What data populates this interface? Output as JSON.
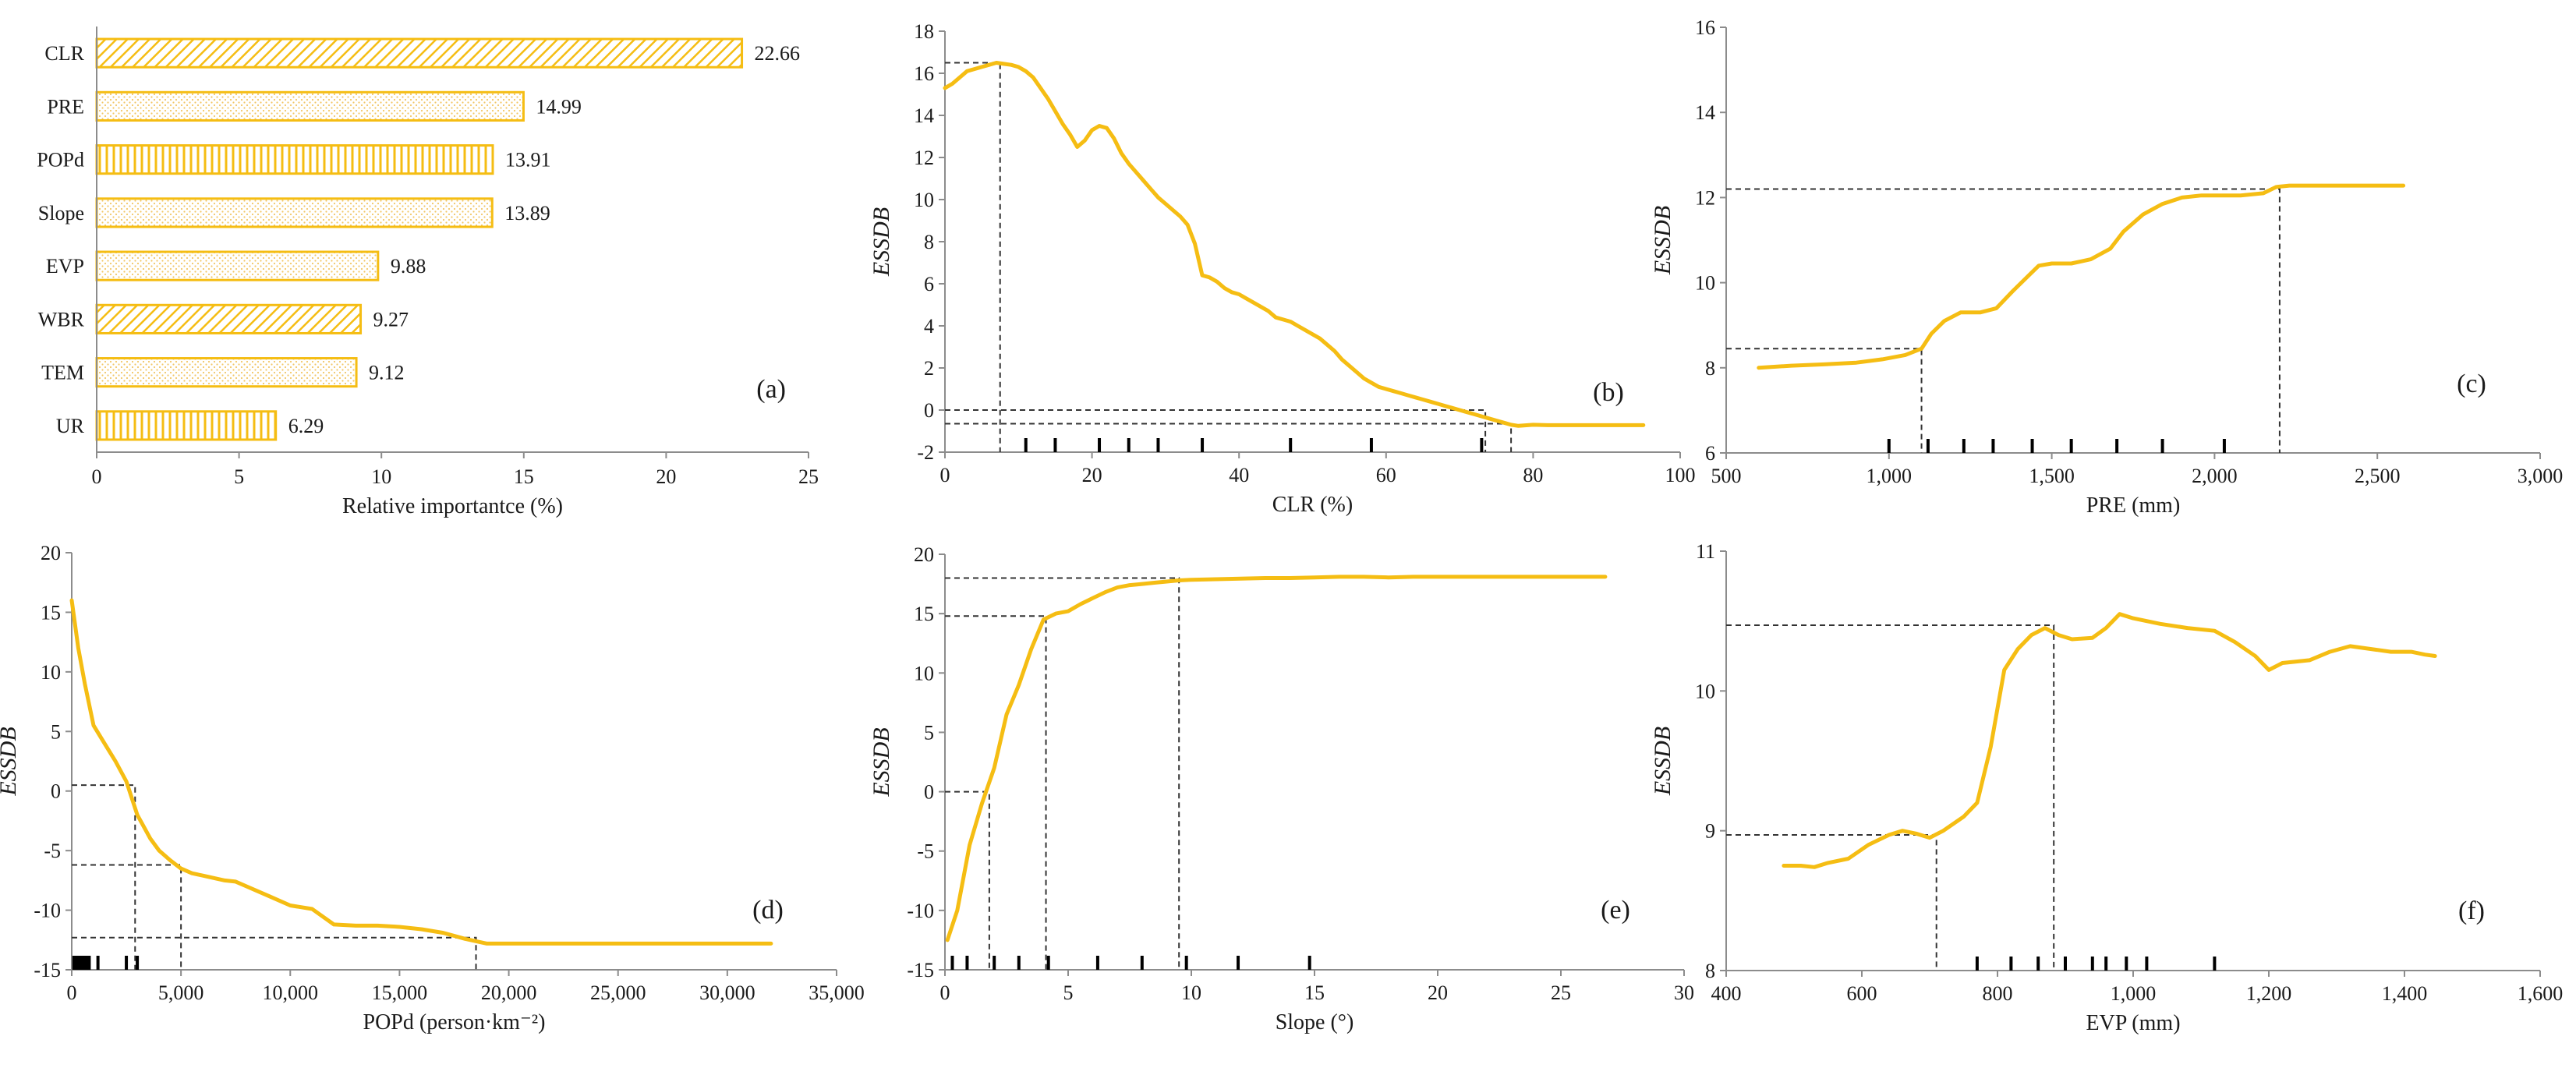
{
  "colors": {
    "accent": "#f5bd13",
    "axis": "#8c8c8c",
    "guide": "#333333",
    "rug": "#000000"
  },
  "chart_data": [
    {
      "id": "a",
      "type": "bar",
      "orientation": "horizontal",
      "panel_label": "(a)",
      "xlabel": "Relative importantce (%)",
      "ylabel": "",
      "xlim": [
        0,
        25
      ],
      "xticks": [
        "0",
        "5",
        "10",
        "15",
        "20",
        "25"
      ],
      "bars": [
        {
          "name": "CLR",
          "value": 22.66,
          "label": "22.66",
          "pattern": "diagonal"
        },
        {
          "name": "PRE",
          "value": 14.99,
          "label": "14.99",
          "pattern": "dots"
        },
        {
          "name": "POPd",
          "value": 13.91,
          "label": "13.91",
          "pattern": "vertical"
        },
        {
          "name": "Slope",
          "value": 13.89,
          "label": "13.89",
          "pattern": "dots"
        },
        {
          "name": "EVP",
          "value": 9.88,
          "label": "9.88",
          "pattern": "dots"
        },
        {
          "name": "WBR",
          "value": 9.27,
          "label": "9.27",
          "pattern": "diagonal"
        },
        {
          "name": "TEM",
          "value": 9.12,
          "label": "9.12",
          "pattern": "dots"
        },
        {
          "name": "UR",
          "value": 6.29,
          "label": "6.29",
          "pattern": "vertical"
        }
      ]
    },
    {
      "id": "b",
      "type": "line",
      "panel_label": "(b)",
      "xlabel": "CLR (%)",
      "ylabel": "ESSDB",
      "xlim": [
        0,
        100
      ],
      "ylim": [
        -2,
        18
      ],
      "xticks": [
        {
          "v": 0,
          "t": "0"
        },
        {
          "v": 20,
          "t": "20"
        },
        {
          "v": 40,
          "t": "40"
        },
        {
          "v": 60,
          "t": "60"
        },
        {
          "v": 80,
          "t": "80"
        },
        {
          "v": 100,
          "t": "100"
        }
      ],
      "yticks": [
        {
          "v": -2,
          "t": "-2"
        },
        {
          "v": 0,
          "t": "0"
        },
        {
          "v": 2,
          "t": "2"
        },
        {
          "v": 4,
          "t": "4"
        },
        {
          "v": 6,
          "t": "6"
        },
        {
          "v": 8,
          "t": "8"
        },
        {
          "v": 10,
          "t": "10"
        },
        {
          "v": 12,
          "t": "12"
        },
        {
          "v": 14,
          "t": "14"
        },
        {
          "v": 16,
          "t": "16"
        },
        {
          "v": 18,
          "t": "18"
        }
      ],
      "x": [
        0,
        1,
        2,
        3,
        4,
        5,
        6,
        7,
        8,
        9,
        10,
        11,
        12,
        13,
        14,
        15,
        16,
        17,
        18,
        19,
        20,
        21,
        22,
        23,
        24,
        25,
        26,
        27,
        28,
        29,
        30,
        31,
        32,
        33,
        34,
        35,
        36,
        37,
        38,
        39,
        40,
        41,
        42,
        43,
        44,
        45,
        46,
        47,
        48,
        49,
        50,
        51,
        52,
        53,
        54,
        55,
        56,
        57,
        58,
        59,
        60,
        61,
        62,
        63,
        64,
        65,
        66,
        67,
        68,
        69,
        70,
        71,
        72,
        73,
        74,
        75,
        76,
        77,
        78,
        80,
        82,
        85,
        90,
        95
      ],
      "y": [
        15.3,
        15.5,
        15.8,
        16.1,
        16.2,
        16.3,
        16.4,
        16.5,
        16.45,
        16.4,
        16.3,
        16.1,
        15.8,
        15.3,
        14.8,
        14.2,
        13.6,
        13.1,
        12.5,
        12.8,
        13.3,
        13.5,
        13.4,
        12.9,
        12.2,
        11.7,
        11.3,
        10.9,
        10.5,
        10.1,
        9.8,
        9.5,
        9.2,
        8.8,
        7.9,
        6.4,
        6.3,
        6.1,
        5.8,
        5.6,
        5.5,
        5.3,
        5.1,
        4.9,
        4.7,
        4.4,
        4.3,
        4.2,
        4.0,
        3.8,
        3.6,
        3.4,
        3.1,
        2.8,
        2.4,
        2.1,
        1.8,
        1.5,
        1.3,
        1.1,
        1.0,
        0.9,
        0.8,
        0.7,
        0.6,
        0.5,
        0.4,
        0.3,
        0.2,
        0.1,
        0.0,
        -0.1,
        -0.2,
        -0.3,
        -0.4,
        -0.5,
        -0.6,
        -0.7,
        -0.75,
        -0.7,
        -0.72,
        -0.72,
        -0.72,
        -0.72
      ],
      "guides": [
        {
          "x": 7.5,
          "y": 16.5
        },
        {
          "x": 73.5,
          "y": 0
        },
        {
          "x": 77,
          "y": -0.65
        }
      ],
      "rug": [
        11,
        15,
        21,
        25,
        29,
        35,
        47,
        58,
        73
      ]
    },
    {
      "id": "c",
      "type": "line",
      "panel_label": "(c)",
      "xlabel": "PRE (mm)",
      "ylabel": "ESSDB",
      "xlim": [
        500,
        3000
      ],
      "ylim": [
        6,
        16
      ],
      "xticks": [
        {
          "v": 500,
          "t": "500"
        },
        {
          "v": 1000,
          "t": "1,000"
        },
        {
          "v": 1500,
          "t": "1,500"
        },
        {
          "v": 2000,
          "t": "2,000"
        },
        {
          "v": 2500,
          "t": "2,500"
        },
        {
          "v": 3000,
          "t": "3,000"
        }
      ],
      "yticks": [
        {
          "v": 6,
          "t": "6"
        },
        {
          "v": 8,
          "t": "8"
        },
        {
          "v": 10,
          "t": "10"
        },
        {
          "v": 12,
          "t": "12"
        },
        {
          "v": 14,
          "t": "14"
        },
        {
          "v": 16,
          "t": "16"
        }
      ],
      "x": [
        600,
        700,
        800,
        900,
        980,
        1050,
        1100,
        1130,
        1170,
        1220,
        1280,
        1330,
        1380,
        1420,
        1460,
        1500,
        1560,
        1620,
        1680,
        1720,
        1780,
        1840,
        1900,
        1960,
        2020,
        2080,
        2150,
        2190,
        2230,
        2300,
        2400,
        2500,
        2580
      ],
      "y": [
        8.0,
        8.05,
        8.08,
        8.12,
        8.2,
        8.3,
        8.45,
        8.8,
        9.1,
        9.3,
        9.3,
        9.4,
        9.8,
        10.1,
        10.4,
        10.45,
        10.45,
        10.55,
        10.8,
        11.2,
        11.6,
        11.85,
        12.0,
        12.05,
        12.05,
        12.05,
        12.1,
        12.25,
        12.28,
        12.28,
        12.28,
        12.28,
        12.28
      ],
      "guides": [
        {
          "x": 1100,
          "y": 8.45
        },
        {
          "x": 2200,
          "y": 12.2
        }
      ],
      "rug": [
        1000,
        1120,
        1230,
        1320,
        1440,
        1560,
        1700,
        1840,
        2030
      ]
    },
    {
      "id": "d",
      "type": "line",
      "panel_label": "(d)",
      "xlabel": "POPd (person·km⁻²)",
      "ylabel": "ESSDB",
      "xlim": [
        0,
        35000
      ],
      "ylim": [
        -15,
        20
      ],
      "xticks": [
        {
          "v": 0,
          "t": "0"
        },
        {
          "v": 5000,
          "t": "5,000"
        },
        {
          "v": 10000,
          "t": "10,000"
        },
        {
          "v": 15000,
          "t": "15,000"
        },
        {
          "v": 20000,
          "t": "20,000"
        },
        {
          "v": 25000,
          "t": "25,000"
        },
        {
          "v": 30000,
          "t": "30,000"
        },
        {
          "v": 35000,
          "t": "35,000"
        }
      ],
      "yticks": [
        {
          "v": -15,
          "t": "-15"
        },
        {
          "v": -10,
          "t": "-10"
        },
        {
          "v": -5,
          "t": "-5"
        },
        {
          "v": 0,
          "t": "0"
        },
        {
          "v": 5,
          "t": "5"
        },
        {
          "v": 10,
          "t": "10"
        },
        {
          "v": 15,
          "t": "15"
        },
        {
          "v": 20,
          "t": "20"
        }
      ],
      "x": [
        0,
        300,
        600,
        1000,
        1500,
        2000,
        2500,
        3000,
        3300,
        3600,
        4000,
        4500,
        5000,
        5500,
        6000,
        6500,
        7000,
        7500,
        8000,
        9000,
        10000,
        11000,
        12000,
        13000,
        14000,
        15000,
        16000,
        17000,
        18000,
        19000,
        20000,
        22000,
        25000,
        28000,
        32000
      ],
      "y": [
        16,
        12,
        9,
        5.5,
        4,
        2.5,
        0.8,
        -2,
        -3,
        -4,
        -5,
        -5.8,
        -6.5,
        -6.9,
        -7.1,
        -7.3,
        -7.5,
        -7.6,
        -8,
        -8.8,
        -9.6,
        -9.9,
        -11.2,
        -11.3,
        -11.3,
        -11.4,
        -11.6,
        -11.9,
        -12.4,
        -12.8,
        -12.8,
        -12.8,
        -12.8,
        -12.8,
        -12.8
      ],
      "guides": [
        {
          "x": 2900,
          "y": 0.5
        },
        {
          "x": 5000,
          "y": -6.2
        },
        {
          "x": 18500,
          "y": -12.3
        }
      ],
      "rug": [
        100,
        200,
        300,
        400,
        500,
        600,
        700,
        800,
        1200,
        2500,
        3000
      ]
    },
    {
      "id": "e",
      "type": "line",
      "panel_label": "(e)",
      "xlabel": "Slope (°)",
      "ylabel": "ESSDB",
      "xlim": [
        0,
        30
      ],
      "ylim": [
        -15,
        20
      ],
      "xticks": [
        {
          "v": 0,
          "t": "0"
        },
        {
          "v": 5,
          "t": "5"
        },
        {
          "v": 10,
          "t": "10"
        },
        {
          "v": 15,
          "t": "15"
        },
        {
          "v": 20,
          "t": "20"
        },
        {
          "v": 25,
          "t": "25"
        },
        {
          "v": 30,
          "t": "30"
        }
      ],
      "yticks": [
        {
          "v": -15,
          "t": "-15"
        },
        {
          "v": -10,
          "t": "-10"
        },
        {
          "v": -5,
          "t": "-5"
        },
        {
          "v": 0,
          "t": "0"
        },
        {
          "v": 5,
          "t": "5"
        },
        {
          "v": 10,
          "t": "10"
        },
        {
          "v": 15,
          "t": "15"
        },
        {
          "v": 20,
          "t": "20"
        }
      ],
      "x": [
        0.1,
        0.5,
        1.0,
        1.5,
        2.0,
        2.5,
        3.0,
        3.5,
        4.0,
        4.5,
        5.0,
        5.5,
        6.0,
        6.5,
        7.0,
        7.5,
        8.0,
        8.5,
        9.0,
        9.5,
        10,
        11,
        12,
        13,
        14,
        15,
        16,
        17,
        18,
        19,
        20,
        22,
        24,
        26,
        26.8
      ],
      "y": [
        -12.5,
        -10,
        -4.5,
        -1,
        2,
        6.5,
        9,
        12,
        14.5,
        15,
        15.2,
        15.8,
        16.3,
        16.8,
        17.2,
        17.4,
        17.5,
        17.6,
        17.7,
        17.8,
        17.85,
        17.9,
        17.95,
        18,
        18,
        18.05,
        18.1,
        18.1,
        18.05,
        18.1,
        18.1,
        18.1,
        18.1,
        18.1,
        18.1
      ],
      "guides": [
        {
          "x": 1.8,
          "y": 0
        },
        {
          "x": 4.1,
          "y": 14.8
        },
        {
          "x": 9.5,
          "y": 18
        }
      ],
      "rug": [
        0.3,
        0.9,
        2.0,
        3.0,
        4.2,
        6.2,
        8.0,
        9.8,
        11.9,
        14.8
      ]
    },
    {
      "id": "f",
      "type": "line",
      "panel_label": "(f)",
      "xlabel": "EVP (mm)",
      "ylabel": "ESSDB",
      "xlim": [
        400,
        1600
      ],
      "ylim": [
        8,
        11
      ],
      "xticks": [
        {
          "v": 400,
          "t": "400"
        },
        {
          "v": 600,
          "t": "600"
        },
        {
          "v": 800,
          "t": "800"
        },
        {
          "v": 1000,
          "t": "1,000"
        },
        {
          "v": 1200,
          "t": "1,200"
        },
        {
          "v": 1400,
          "t": "1,400"
        },
        {
          "v": 1600,
          "t": "1,600"
        }
      ],
      "yticks": [
        {
          "v": 8,
          "t": "8"
        },
        {
          "v": 9,
          "t": "9"
        },
        {
          "v": 10,
          "t": "10"
        },
        {
          "v": 11,
          "t": "11"
        }
      ],
      "x": [
        485,
        510,
        530,
        550,
        580,
        610,
        640,
        660,
        680,
        700,
        720,
        750,
        770,
        790,
        810,
        830,
        850,
        870,
        890,
        910,
        940,
        960,
        980,
        1000,
        1020,
        1040,
        1080,
        1120,
        1150,
        1180,
        1200,
        1220,
        1260,
        1290,
        1320,
        1350,
        1380,
        1410,
        1430,
        1445
      ],
      "y": [
        8.75,
        8.75,
        8.74,
        8.77,
        8.8,
        8.9,
        8.97,
        9.0,
        8.98,
        8.95,
        9.0,
        9.1,
        9.2,
        9.6,
        10.15,
        10.3,
        10.4,
        10.45,
        10.4,
        10.37,
        10.38,
        10.45,
        10.55,
        10.52,
        10.5,
        10.48,
        10.45,
        10.43,
        10.35,
        10.25,
        10.15,
        10.2,
        10.22,
        10.28,
        10.32,
        10.3,
        10.28,
        10.28,
        10.26,
        10.25
      ],
      "guides": [
        {
          "x": 710,
          "y": 8.97
        },
        {
          "x": 883,
          "y": 10.47
        }
      ],
      "rug": [
        770,
        820,
        860,
        900,
        940,
        960,
        990,
        1020,
        1120
      ]
    }
  ]
}
